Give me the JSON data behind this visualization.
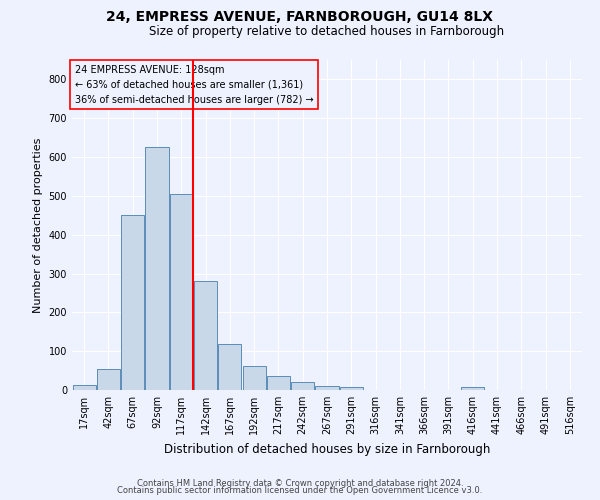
{
  "title": "24, EMPRESS AVENUE, FARNBOROUGH, GU14 8LX",
  "subtitle": "Size of property relative to detached houses in Farnborough",
  "xlabel": "Distribution of detached houses by size in Farnborough",
  "ylabel": "Number of detached properties",
  "footnote1": "Contains HM Land Registry data © Crown copyright and database right 2024.",
  "footnote2": "Contains public sector information licensed under the Open Government Licence v3.0.",
  "bar_labels": [
    "17sqm",
    "42sqm",
    "67sqm",
    "92sqm",
    "117sqm",
    "142sqm",
    "167sqm",
    "192sqm",
    "217sqm",
    "242sqm",
    "267sqm",
    "291sqm",
    "316sqm",
    "341sqm",
    "366sqm",
    "391sqm",
    "416sqm",
    "441sqm",
    "466sqm",
    "491sqm",
    "516sqm"
  ],
  "bar_values": [
    13,
    55,
    450,
    625,
    505,
    280,
    118,
    63,
    35,
    20,
    10,
    7,
    0,
    0,
    0,
    0,
    8,
    0,
    0,
    0,
    0
  ],
  "bar_color": "#c8d8e8",
  "bar_edge_color": "#5b8db8",
  "vline_x": 4.5,
  "vline_color": "red",
  "ylim": [
    0,
    850
  ],
  "yticks": [
    0,
    100,
    200,
    300,
    400,
    500,
    600,
    700,
    800
  ],
  "annotation_title": "24 EMPRESS AVENUE: 128sqm",
  "annotation_line1": "← 63% of detached houses are smaller (1,361)",
  "annotation_line2": "36% of semi-detached houses are larger (782) →",
  "annotation_box_color": "red",
  "background_color": "#eef2ff",
  "grid_color": "#ffffff",
  "title_fontsize": 10,
  "subtitle_fontsize": 8.5,
  "xlabel_fontsize": 8.5,
  "ylabel_fontsize": 8,
  "tick_fontsize": 7,
  "annot_fontsize": 7,
  "footnote_fontsize": 6
}
